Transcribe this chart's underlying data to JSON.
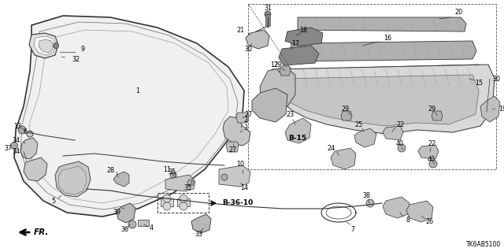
{
  "diagram_code": "TK6AB5100",
  "background_color": "#ffffff",
  "line_color": "#333333",
  "text_color": "#000000",
  "figsize": [
    6.4,
    3.2
  ],
  "dpi": 100,
  "fr_label": "FR.",
  "b15_label": "B-15",
  "b36_label": "B-36-10",
  "hood_color": "#e8e8e8",
  "part_fill": "#d0d0d0",
  "cowl_fill": "#c0c0c0"
}
